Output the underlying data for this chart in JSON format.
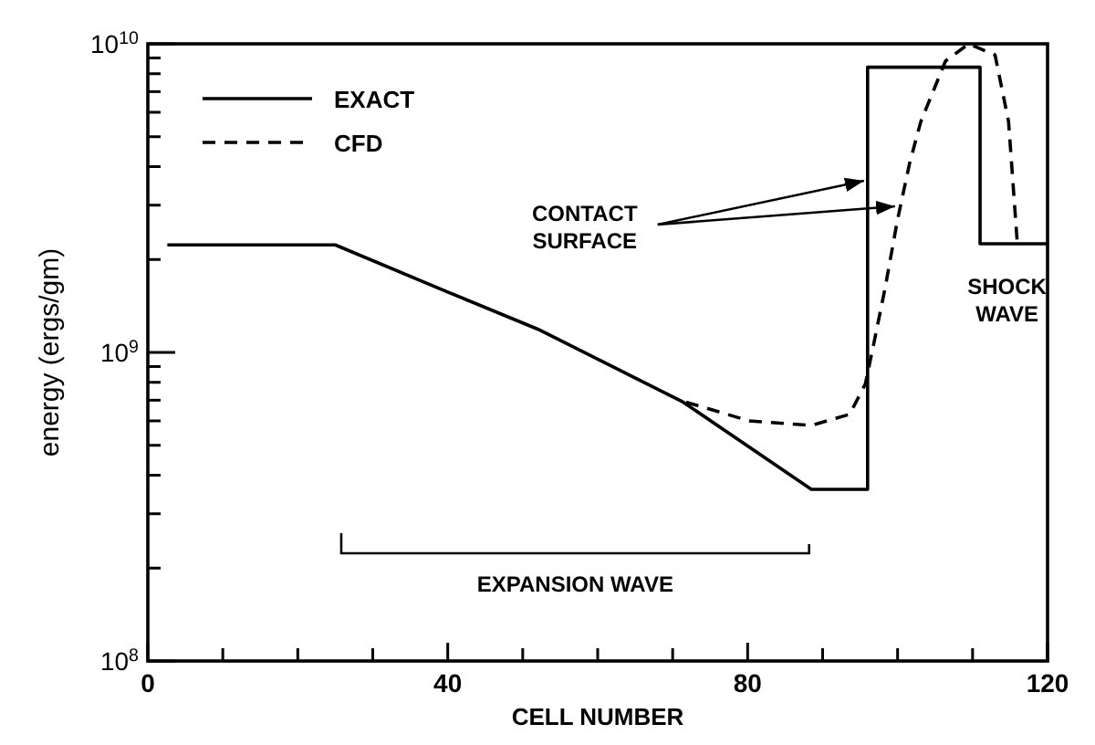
{
  "chart_data": {
    "type": "line",
    "xlabel": "CELL NUMBER",
    "ylabel": "energy (ergs/gm)",
    "log": "y",
    "xlim": [
      0,
      120
    ],
    "ylim": [
      100000000,
      10000000000
    ],
    "xticks": [
      0,
      {
        "value": 10,
        "label": null
      },
      {
        "value": 20,
        "label": null
      },
      {
        "value": 30,
        "label": null
      },
      40,
      {
        "value": 50,
        "label": null
      },
      {
        "value": 60,
        "label": null
      },
      {
        "value": 70,
        "label": null
      },
      80,
      {
        "value": 90,
        "label": null
      },
      {
        "value": 100,
        "label": null
      },
      {
        "value": 110,
        "label": null
      },
      120
    ],
    "yticks": [
      {
        "value": 100000000,
        "label": "10$^{8}$"
      },
      {
        "value": 200000000,
        "label": null
      },
      {
        "value": 300000000,
        "label": null
      },
      {
        "value": 400000000,
        "label": null
      },
      {
        "value": 500000000,
        "label": null
      },
      {
        "value": 600000000,
        "label": null
      },
      {
        "value": 700000000,
        "label": null
      },
      {
        "value": 800000000,
        "label": null
      },
      {
        "value": 900000000,
        "label": null
      },
      {
        "value": 1000000000,
        "label": "10$^{9}$"
      },
      {
        "value": 2000000000,
        "label": null
      },
      {
        "value": 3000000000,
        "label": null
      },
      {
        "value": 4000000000,
        "label": null
      },
      {
        "value": 5000000000,
        "label": null
      },
      {
        "value": 6000000000,
        "label": null
      },
      {
        "value": 7000000000,
        "label": null
      },
      {
        "value": 8000000000,
        "label": null
      },
      {
        "value": 9000000000,
        "label": null
      },
      {
        "value": 10000000000,
        "label": "10$^{10}$"
      }
    ],
    "grid": false,
    "legend": "top left",
    "series": [
      {
        "name": "EXACT",
        "color": "#000000",
        "line_style": "solid",
        "x": [
          2.6,
          25,
          40,
          52,
          71.4,
          88.5,
          96,
          96,
          111,
          111,
          120
        ],
        "values": [
          2230000000,
          2230000000,
          1570000000,
          1190000000,
          690000000,
          360000000,
          360000000,
          8400000000,
          8400000000,
          2250000000,
          2250000000
        ]
      },
      {
        "name": "CFD",
        "color": "#000000",
        "line_style": "dashed",
        "x": [
          71.8,
          80.2,
          88.5,
          93.6,
          95.7,
          96.9,
          98.3,
          100,
          101.6,
          103.1,
          106.4,
          109.5,
          113,
          114.8,
          116
        ],
        "values": [
          690000000,
          600000000,
          580000000,
          630000000,
          790000000,
          1090000000,
          1600000000,
          2700000000,
          4100000000,
          5600000000,
          8800000000,
          10000000000,
          9200000000,
          5600000000,
          2200000000
        ]
      }
    ],
    "annotations": [
      {
        "text": "CONTACT SURFACE",
        "x": 96,
        "y": 3600000000
      },
      "SHOCK WAVE",
      "EXPANSION WAVE"
    ]
  }
}
